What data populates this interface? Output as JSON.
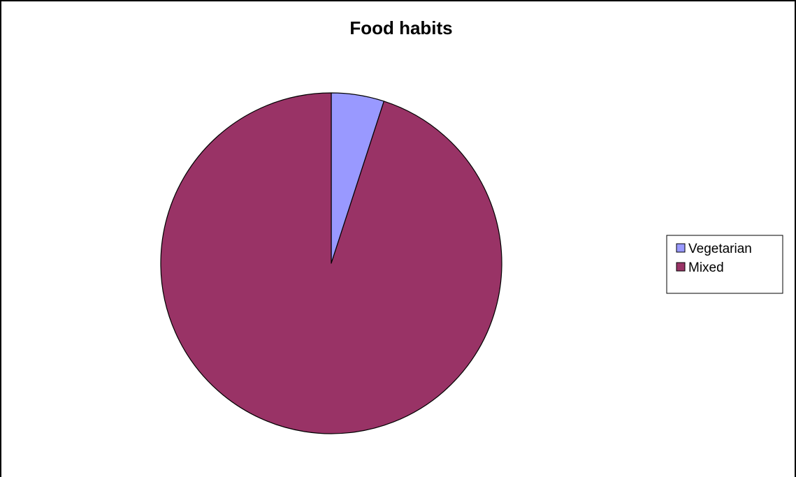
{
  "chart_data": {
    "type": "pie",
    "title": "Food habits",
    "categories": [
      "Vegetarian",
      "Mixed"
    ],
    "values": [
      5,
      95
    ],
    "colors": [
      "#9999ff",
      "#993366"
    ],
    "start_angle_deg": 0,
    "direction": "clockwise",
    "legend": {
      "position": "right",
      "entries": [
        "Vegetarian",
        "Mixed"
      ]
    },
    "slice_outline_color": "#000000"
  }
}
